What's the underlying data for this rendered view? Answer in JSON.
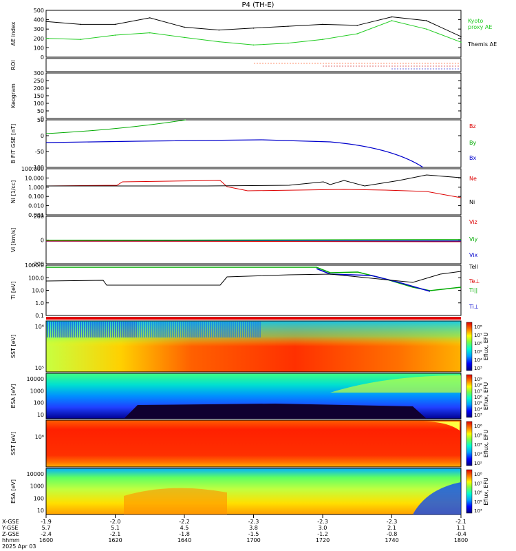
{
  "title": "P4 (TH-E)",
  "date_label": "2025 Apr 03",
  "axis_row_labels": [
    "X-GSE",
    "Y-GSE",
    "Z-GSE",
    "hhmm"
  ],
  "time_axis": {
    "ticks": [
      "1600",
      "1620",
      "1640",
      "1700",
      "1720",
      "1740",
      "1800"
    ],
    "x_gse": [
      "-1.9",
      "-2.0",
      "-2.2",
      "-2.3",
      "-2.3",
      "-2.3",
      "-2.1"
    ],
    "y_gse": [
      "5.7",
      "5.1",
      "4.5",
      "3.8",
      "3.0",
      "2.1",
      "1.1"
    ],
    "z_gse": [
      "-2.4",
      "-2.1",
      "-1.8",
      "-1.5",
      "-1.2",
      "-0.8",
      "-0.4"
    ]
  },
  "panels": {
    "ae": {
      "ylabel": "AE index",
      "yticks": [
        "0",
        "100",
        "200",
        "300",
        "400",
        "500"
      ],
      "legend_kyoto": "Kyoto proxy AE",
      "legend_themis": "Themis AE",
      "color_kyoto": "#22cc22",
      "color_themis": "#000000"
    },
    "roi": {
      "ylabel": "ROI"
    },
    "keogram": {
      "ylabel": "Keogram",
      "yticks": [
        "0",
        "50",
        "100",
        "150",
        "200",
        "250",
        "300"
      ]
    },
    "bfield": {
      "ylabel": "B FIT GSE [nT]",
      "yticks": [
        "-100",
        "-50",
        "0",
        "50"
      ],
      "labels": [
        "Bz",
        "By",
        "Bx"
      ],
      "colors": [
        "#dd0000",
        "#00aa00",
        "#0000cc"
      ]
    },
    "density": {
      "ylabel": "Ni [1/cc]",
      "yticks": [
        "0.001",
        "0.010",
        "0.100",
        "1.000",
        "10.000",
        "100.000"
      ],
      "labels": [
        "Ne",
        "Ni"
      ],
      "colors": [
        "#dd0000",
        "#000000"
      ]
    },
    "velocity": {
      "ylabel": "Vi [km/s]",
      "yticks": [
        "-200",
        "0",
        "200"
      ],
      "labels": [
        "Viz",
        "Viy",
        "Vix"
      ],
      "colors": [
        "#dd0000",
        "#00aa00",
        "#0000cc"
      ]
    },
    "temp": {
      "ylabel": "Ti [eV]",
      "yticks": [
        "0.1",
        "1.0",
        "10.0",
        "100.0",
        "1000.0"
      ],
      "labels": [
        "Tell",
        "Te⊥",
        "Ti||",
        "Ti⊥"
      ],
      "colors": [
        "#000000",
        "#dd0000",
        "#00aa00",
        "#0000cc"
      ]
    },
    "sst_e": {
      "ylabel": "SST [eV]",
      "yticks": [
        "10⁶",
        "10⁵"
      ],
      "cb_label": "Eflux, EFU",
      "cb_ticks": [
        "10⁸",
        "10⁷",
        "10⁶",
        "10⁵",
        "10⁴",
        "10³"
      ]
    },
    "esa_e": {
      "ylabel": "ESA [eV]",
      "yticks": [
        "10000",
        "1000",
        "100",
        "10"
      ],
      "cb_label": "Eflux, EFU",
      "cb_ticks": [
        "10⁹",
        "10⁸",
        "10⁷",
        "10⁶",
        "10⁵",
        "10⁴",
        "10³"
      ]
    },
    "sst_i": {
      "ylabel": "SST [eV]",
      "yticks": [
        "10⁶"
      ],
      "cb_label": "Eflux, EFU",
      "cb_ticks": [
        "10⁶",
        "10⁵",
        "10⁴",
        "10³",
        "10²"
      ]
    },
    "esa_i": {
      "ylabel": "ESA [eV]",
      "yticks": [
        "10000",
        "1000",
        "100",
        "10"
      ],
      "cb_label": "Eflux, EFU",
      "cb_ticks": [
        "10⁸",
        "10⁷",
        "10⁶",
        "10⁵",
        "10⁴"
      ]
    }
  },
  "chart_data": {
    "type": "line",
    "title": "P4 (TH-E)",
    "x": [
      "1600",
      "1610",
      "1620",
      "1630",
      "1640",
      "1650",
      "1700",
      "1710",
      "1720",
      "1730",
      "1740",
      "1750",
      "1800"
    ],
    "series": [
      {
        "name": "Kyoto proxy AE",
        "values": [
          200,
          190,
          235,
          260,
          210,
          165,
          130,
          150,
          190,
          250,
          390,
          300,
          160
        ]
      },
      {
        "name": "Themis AE",
        "values": [
          380,
          350,
          350,
          420,
          320,
          290,
          310,
          330,
          350,
          340,
          430,
          390,
          220
        ]
      }
    ],
    "ylabel": "AE index",
    "ylim": [
      0,
      500
    ]
  }
}
